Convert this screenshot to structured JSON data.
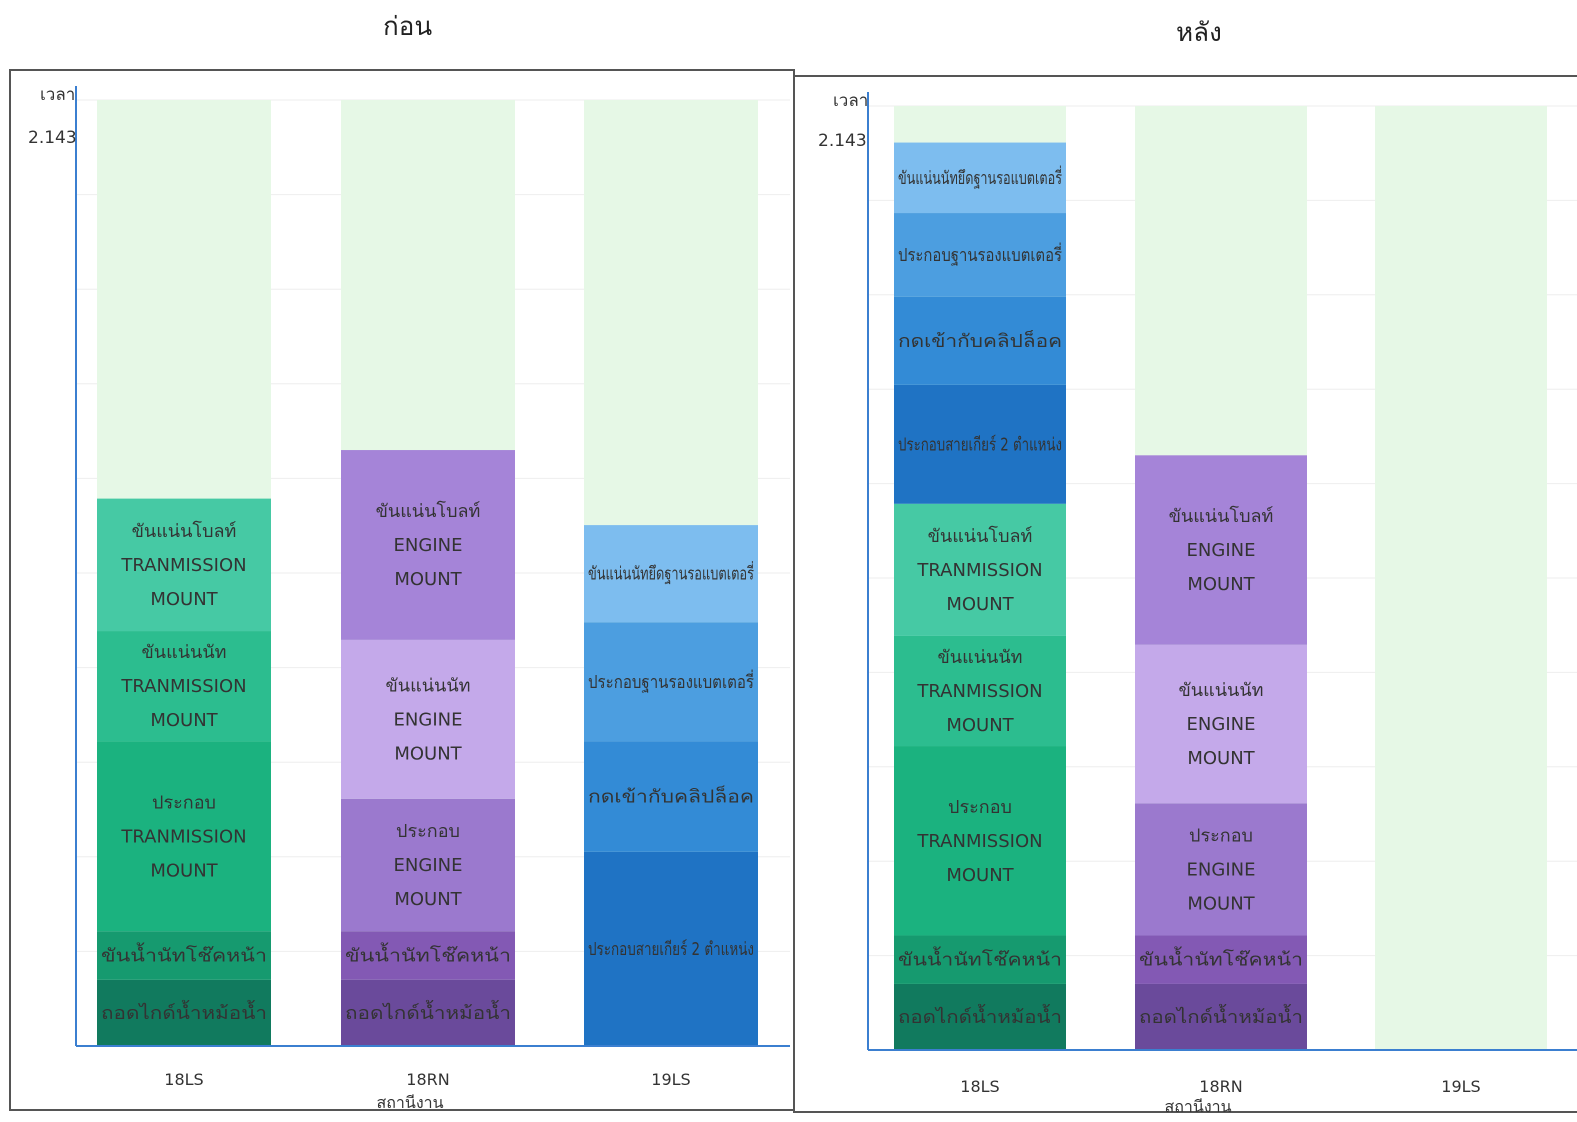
{
  "chart_data": [
    {
      "type": "bar",
      "stacked": true,
      "title": "ก่อน",
      "ylabel": "เวลา",
      "xlabel": "สถานีงาน",
      "reference_line_label": "2.143",
      "reference_value": 2.143,
      "ylim": [
        0,
        2.143
      ],
      "grid": true,
      "categories": [
        "18LS",
        "18RN",
        "19LS"
      ],
      "stacks": [
        {
          "category": "18LS",
          "segments": [
            {
              "label": "ถอดไกด์น้ำหม้อน้ำ",
              "value": 0.15,
              "color": "#117a5e"
            },
            {
              "label": "ขันน้ำนัทโช๊คหน้า",
              "value": 0.11,
              "color": "#169a6f"
            },
            {
              "label": "ประกอบ TRANMISSION MOUNT",
              "value": 0.43,
              "color": "#1bb27f"
            },
            {
              "label": "ขันแน่นนัท TRANMISSION MOUNT",
              "value": 0.25,
              "color": "#2cbd8f"
            },
            {
              "label": "ขันแน่นโบลท์ TRANMISSION MOUNT",
              "value": 0.3,
              "color": "#46c9a4"
            }
          ]
        },
        {
          "category": "18RN",
          "segments": [
            {
              "label": "ถอดไกด์น้ำหม้อน้ำ",
              "value": 0.15,
              "color": "#6a4a9b"
            },
            {
              "label": "ขันน้ำนัทโช๊คหน้า",
              "value": 0.11,
              "color": "#8359b4"
            },
            {
              "label": "ประกอบ ENGINE MOUNT",
              "value": 0.3,
              "color": "#9b79ce"
            },
            {
              "label": "ขันแน่นนัท ENGINE MOUNT",
              "value": 0.36,
              "color": "#c4a9ea"
            },
            {
              "label": "ขันแน่นโบลท์ ENGINE MOUNT",
              "value": 0.43,
              "color": "#a584d8"
            }
          ]
        },
        {
          "category": "19LS",
          "segments": [
            {
              "label": "ประกอบสายเกียร์ 2 ตำแหน่ง",
              "value": 0.44,
              "color": "#1f73c4"
            },
            {
              "label": "กดเข้ากับคลิปล็อค",
              "value": 0.25,
              "color": "#338bd6"
            },
            {
              "label": "ประกอบฐานรองแบตเตอรี่",
              "value": 0.27,
              "color": "#4c9ee0"
            },
            {
              "label": "ขันแน่นนัทยึดฐานรอแบตเตอรี่",
              "value": 0.22,
              "color": "#7dbdef"
            }
          ]
        }
      ]
    },
    {
      "type": "bar",
      "stacked": true,
      "title": "หลัง",
      "ylabel": "เวลา",
      "xlabel": "สถานีงาน",
      "reference_line_label": "2.143",
      "reference_value": 2.143,
      "ylim": [
        0,
        2.143
      ],
      "grid": true,
      "categories": [
        "18LS",
        "18RN",
        "19LS"
      ],
      "stacks": [
        {
          "category": "18LS",
          "segments": [
            {
              "label": "ถอดไกด์น้ำหม้อน้ำ",
              "value": 0.15,
              "color": "#117a5e"
            },
            {
              "label": "ขันน้ำนัทโช๊คหน้า",
              "value": 0.11,
              "color": "#169a6f"
            },
            {
              "label": "ประกอบ TRANMISSION MOUNT",
              "value": 0.43,
              "color": "#1bb27f"
            },
            {
              "label": "ขันแน่นนัท TRANMISSION MOUNT",
              "value": 0.25,
              "color": "#2cbd8f"
            },
            {
              "label": "ขันแน่นโบลท์ TRANMISSION MOUNT",
              "value": 0.3,
              "color": "#46c9a4"
            },
            {
              "label": "ประกอบสายเกียร์ 2 ตำแหน่ง",
              "value": 0.27,
              "color": "#1f73c4"
            },
            {
              "label": "กดเข้ากับคลิปล็อค",
              "value": 0.2,
              "color": "#338bd6"
            },
            {
              "label": "ประกอบฐานรองแบตเตอรี่",
              "value": 0.19,
              "color": "#4c9ee0"
            },
            {
              "label": "ขันแน่นนัทยึดฐานรอแบตเตอรี่",
              "value": 0.16,
              "color": "#7dbdef"
            }
          ]
        },
        {
          "category": "18RN",
          "segments": [
            {
              "label": "ถอดไกด์น้ำหม้อน้ำ",
              "value": 0.15,
              "color": "#6a4a9b"
            },
            {
              "label": "ขันน้ำนัทโช๊คหน้า",
              "value": 0.11,
              "color": "#8359b4"
            },
            {
              "label": "ประกอบ ENGINE MOUNT",
              "value": 0.3,
              "color": "#9b79ce"
            },
            {
              "label": "ขันแน่นนัท ENGINE MOUNT",
              "value": 0.36,
              "color": "#c4a9ea"
            },
            {
              "label": "ขันแน่นโบลท์ ENGINE MOUNT",
              "value": 0.43,
              "color": "#a584d8"
            }
          ]
        },
        {
          "category": "19LS",
          "segments": []
        }
      ]
    }
  ]
}
